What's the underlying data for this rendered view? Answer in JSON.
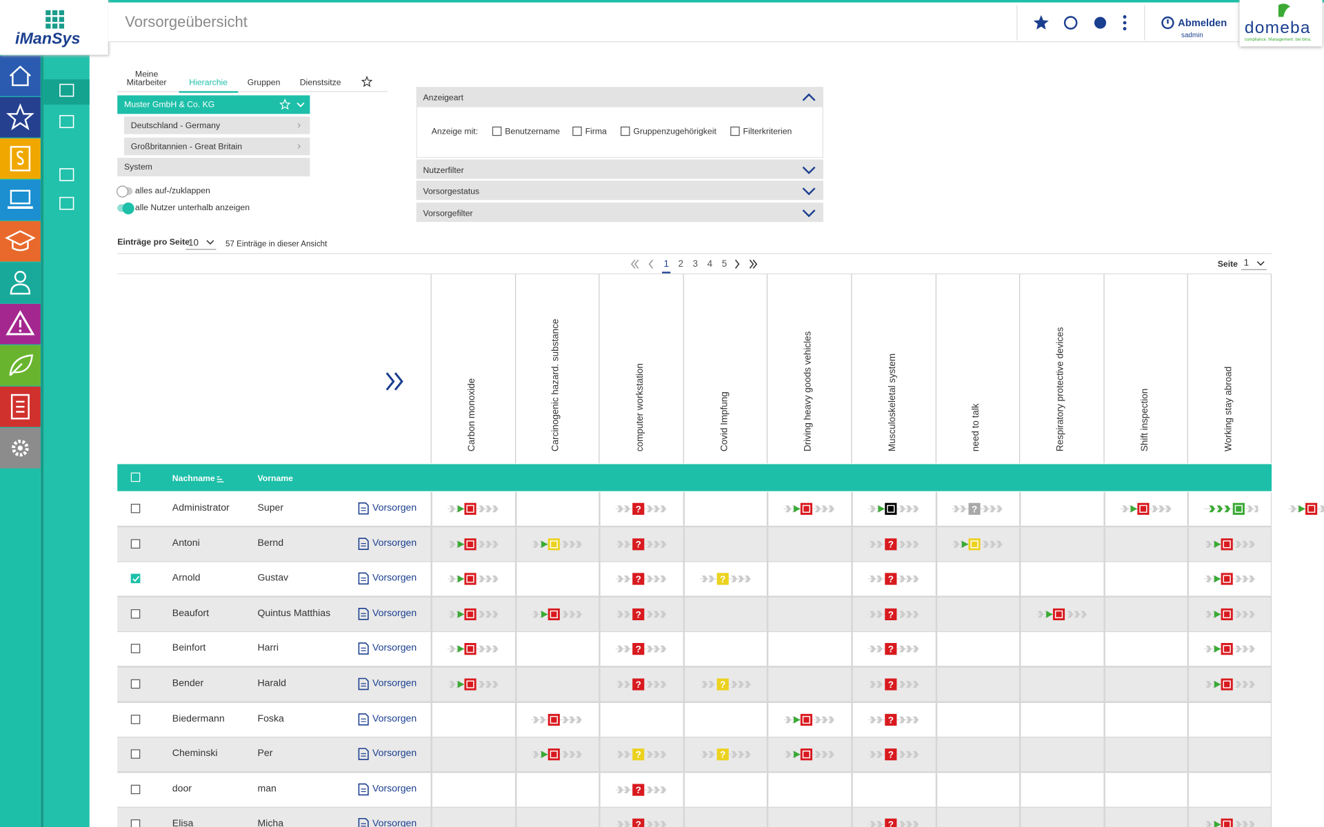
{
  "logo": {
    "left": "iManSys",
    "right": "domeba",
    "tagline": "compliance. Management. bei bina."
  },
  "header": {
    "title": "Vorsorgeübersicht",
    "logout": "Abmelden",
    "user": "sadmin"
  },
  "tabs": [
    "Meine\nMitarbeiter",
    "Hierarchie",
    "Gruppen",
    "Dienstsitze"
  ],
  "tree": {
    "root": "Muster GmbH & Co. KG",
    "children": [
      "Deutschland - Germany",
      "Großbritannien - Great Britain"
    ],
    "other": "System"
  },
  "toggles": [
    "alles auf-/zuklappen",
    "alle Nutzer unterhalb anzeigen"
  ],
  "filters": {
    "title": "Anzeigeart",
    "label": "Anzeige mit:",
    "options": [
      "Benutzername",
      "Firma",
      "Gruppenzugehörigkeit",
      "Filterkriterien"
    ],
    "sections": [
      "Nutzerfilter",
      "Vorsorgestatus",
      "Vorsorgefilter"
    ]
  },
  "paging": {
    "per_page_label": "Einträge pro Seite",
    "per_page": "10",
    "count_text": "57 Einträge in dieser Ansicht",
    "pages": [
      1,
      2,
      3,
      4,
      5
    ],
    "page_label": "Seite",
    "page": "1"
  },
  "table": {
    "columns": [
      "Carbon monoxide",
      "Carcinogenic hazard. substance",
      "computer workstation",
      "Covid Impfung",
      "Driving heavy goods vehicles",
      "Musculoskeletal system",
      "need to talk",
      "Respiratory protective devices",
      "Shift inspection",
      "Working stay abroad"
    ],
    "header": {
      "nachname": "Nachname",
      "vorname": "Vorname"
    },
    "action": "Vorsorgen",
    "rows": [
      [
        "Administrator",
        "Super"
      ],
      [
        "Antoni",
        "Bernd"
      ],
      [
        "Arnold",
        "Gustav"
      ],
      [
        "Beaufort",
        "Quintus Matthias"
      ],
      [
        "Beinfort",
        "Harri"
      ],
      [
        "Bender",
        "Harald"
      ],
      [
        "Biedermann",
        "Foska"
      ],
      [
        "Cheminski",
        "Per"
      ],
      [
        "door",
        "man"
      ],
      [
        "Elisa",
        "Micha"
      ]
    ],
    "checked": [
      false,
      false,
      true,
      false,
      false,
      false,
      false,
      false,
      false,
      false
    ]
  }
}
